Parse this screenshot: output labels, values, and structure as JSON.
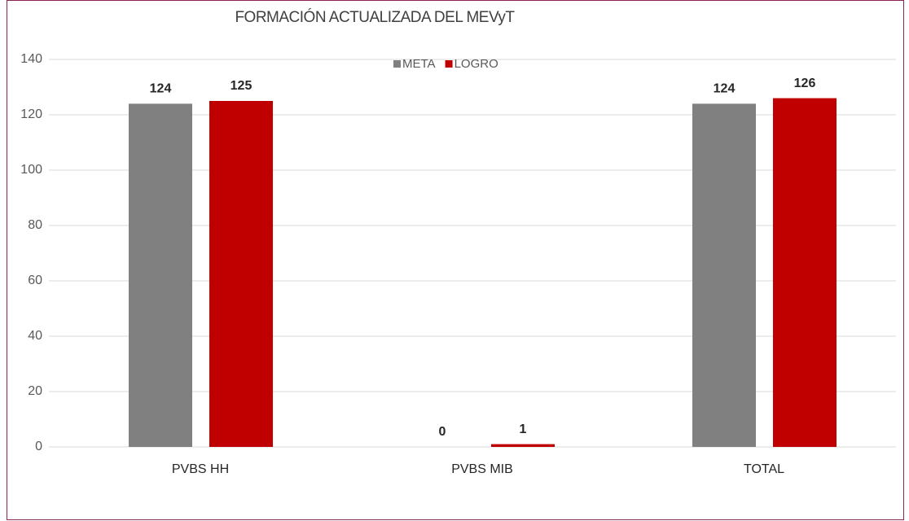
{
  "chart_data": {
    "type": "bar",
    "title": "FORMACIÓN ACTUALIZADA DEL MEVyT",
    "categories": [
      "PVBS HH",
      "PVBS MIB",
      "TOTAL"
    ],
    "series": [
      {
        "name": "META",
        "color": "#808080",
        "values": [
          124,
          0,
          124
        ]
      },
      {
        "name": "LOGRO",
        "color": "#c00000",
        "values": [
          125,
          1,
          126
        ]
      }
    ],
    "ylim": [
      0,
      140
    ],
    "yticks": [
      0,
      20,
      40,
      60,
      80,
      100,
      120,
      140
    ],
    "grid": true,
    "legend": "top"
  }
}
